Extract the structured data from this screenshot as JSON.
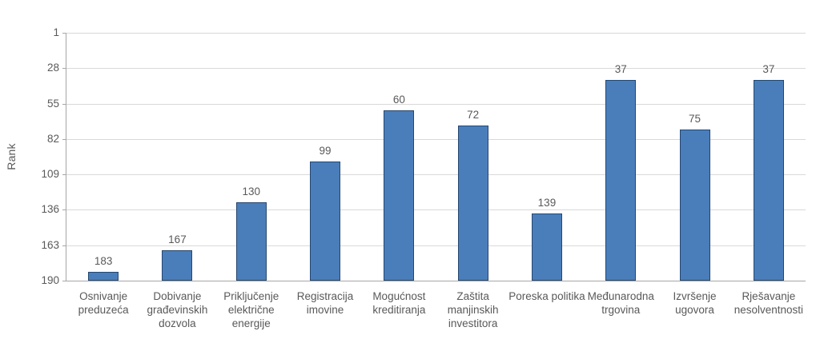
{
  "chart_data": {
    "type": "bar",
    "title": "",
    "xlabel": "",
    "ylabel": "Rank",
    "y_axis": {
      "min": 1,
      "max": 190,
      "inverted": true,
      "ticks": [
        1,
        28,
        55,
        82,
        109,
        136,
        163,
        190
      ]
    },
    "grid": true,
    "legend_position": "none",
    "categories": [
      "Osnivanje preduzeća",
      "Dobivanje građevinskih dozvola",
      "Priključenje električne energije",
      "Registracija imovine",
      "Mogućnost kreditiranja",
      "Zaštita manjinskih investitora",
      "Poreska politika",
      "Međunarodna trgovina",
      "Izvršenje ugovora",
      "Rješavanje nesolventnosti"
    ],
    "category_lines": [
      [
        "Osnivanje",
        "preduzeća"
      ],
      [
        "Dobivanje",
        "građevinskih",
        "dozvola"
      ],
      [
        "Priključenje",
        "električne",
        "energije"
      ],
      [
        "Registracija",
        "imovine"
      ],
      [
        "Mogućnost",
        "kreditiranja"
      ],
      [
        "Zaštita",
        "manjinskih",
        "investitora"
      ],
      [
        "Poreska politika"
      ],
      [
        "Međunarodna",
        "trgovina"
      ],
      [
        "Izvršenje",
        "ugovora"
      ],
      [
        "Rješavanje",
        "nesolventnosti"
      ]
    ],
    "values": [
      183,
      167,
      130,
      99,
      60,
      72,
      139,
      37,
      75,
      37
    ],
    "colors": {
      "bar_fill": "#4a7ebb",
      "bar_border": "#25476f",
      "gridline": "#d9d9d9",
      "axis": "#a6a6a6",
      "text": "#595959",
      "background": "#ffffff"
    }
  }
}
